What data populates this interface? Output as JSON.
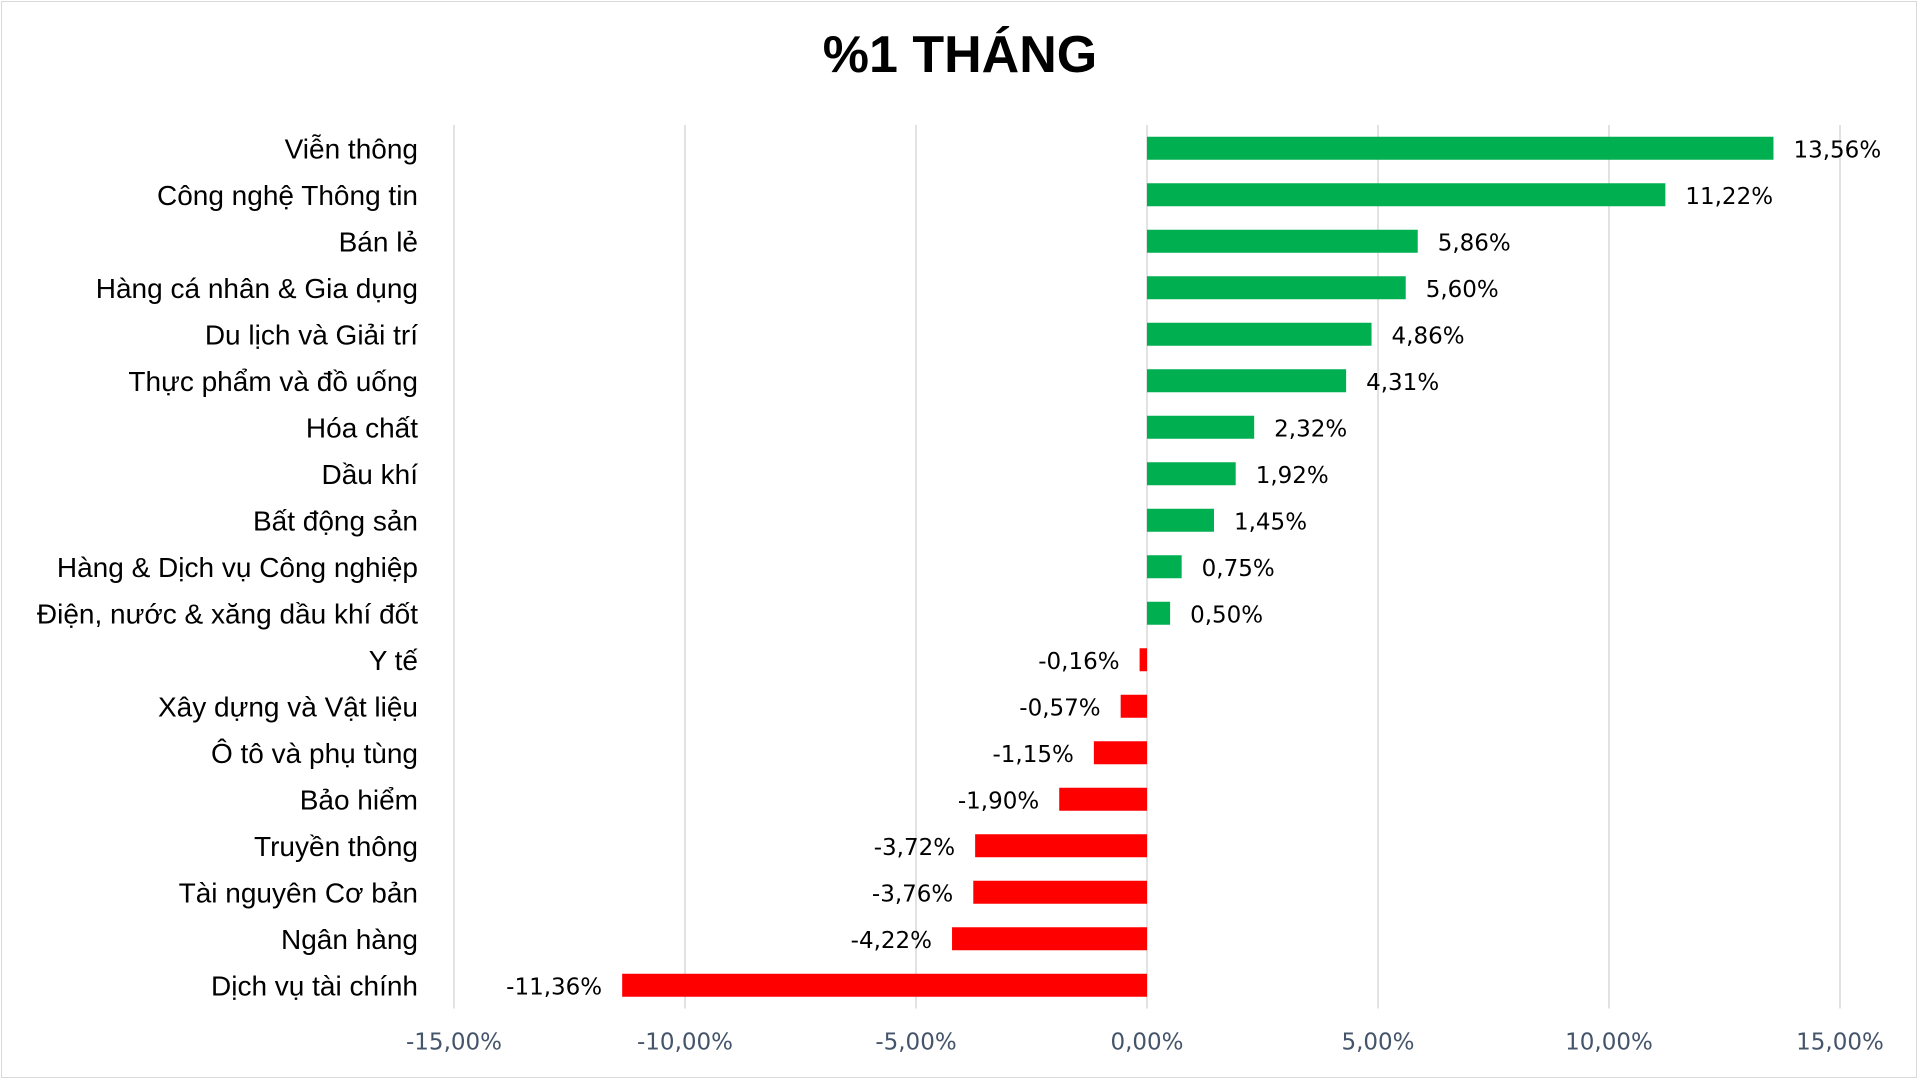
{
  "chart_data": {
    "type": "bar",
    "orientation": "horizontal",
    "title": "%1 THÁNG",
    "xlabel": "",
    "ylabel": "",
    "xlim": [
      -15,
      15
    ],
    "x_ticks": [
      -15,
      -10,
      -5,
      0,
      5,
      10,
      15
    ],
    "x_tick_labels": [
      "-15,00%",
      "-10,00%",
      "-5,00%",
      "0,00%",
      "5,00%",
      "10,00%",
      "15,00%"
    ],
    "grid": true,
    "legend": "none",
    "colors": {
      "positive": "#00b050",
      "negative": "#ff0000"
    },
    "categories": [
      "Viễn thông",
      "Công nghệ Thông tin",
      "Bán lẻ",
      "Hàng cá nhân & Gia dụng",
      "Du lịch và Giải trí",
      "Thực phẩm và đồ uống",
      "Hóa chất",
      "Dầu khí",
      "Bất động sản",
      "Hàng & Dịch vụ Công nghiệp",
      "Điện, nước & xăng dầu khí đốt",
      "Y tế",
      "Xây dựng và Vật liệu",
      "Ô tô và phụ tùng",
      "Bảo hiểm",
      "Truyền thông",
      "Tài nguyên Cơ bản",
      "Ngân hàng",
      "Dịch vụ tài chính"
    ],
    "values": [
      13.56,
      11.22,
      5.86,
      5.6,
      4.86,
      4.31,
      2.32,
      1.92,
      1.45,
      0.75,
      0.5,
      -0.16,
      -0.57,
      -1.15,
      -1.9,
      -3.72,
      -3.76,
      -4.22,
      -11.36
    ],
    "value_labels": [
      "13,56%",
      "11,22%",
      "5,86%",
      "5,60%",
      "4,86%",
      "4,31%",
      "2,32%",
      "1,92%",
      "1,45%",
      "0,75%",
      "0,50%",
      "-0,16%",
      "-0,57%",
      "-1,15%",
      "-1,90%",
      "-3,72%",
      "-3,76%",
      "-4,22%",
      "-11,36%"
    ]
  }
}
